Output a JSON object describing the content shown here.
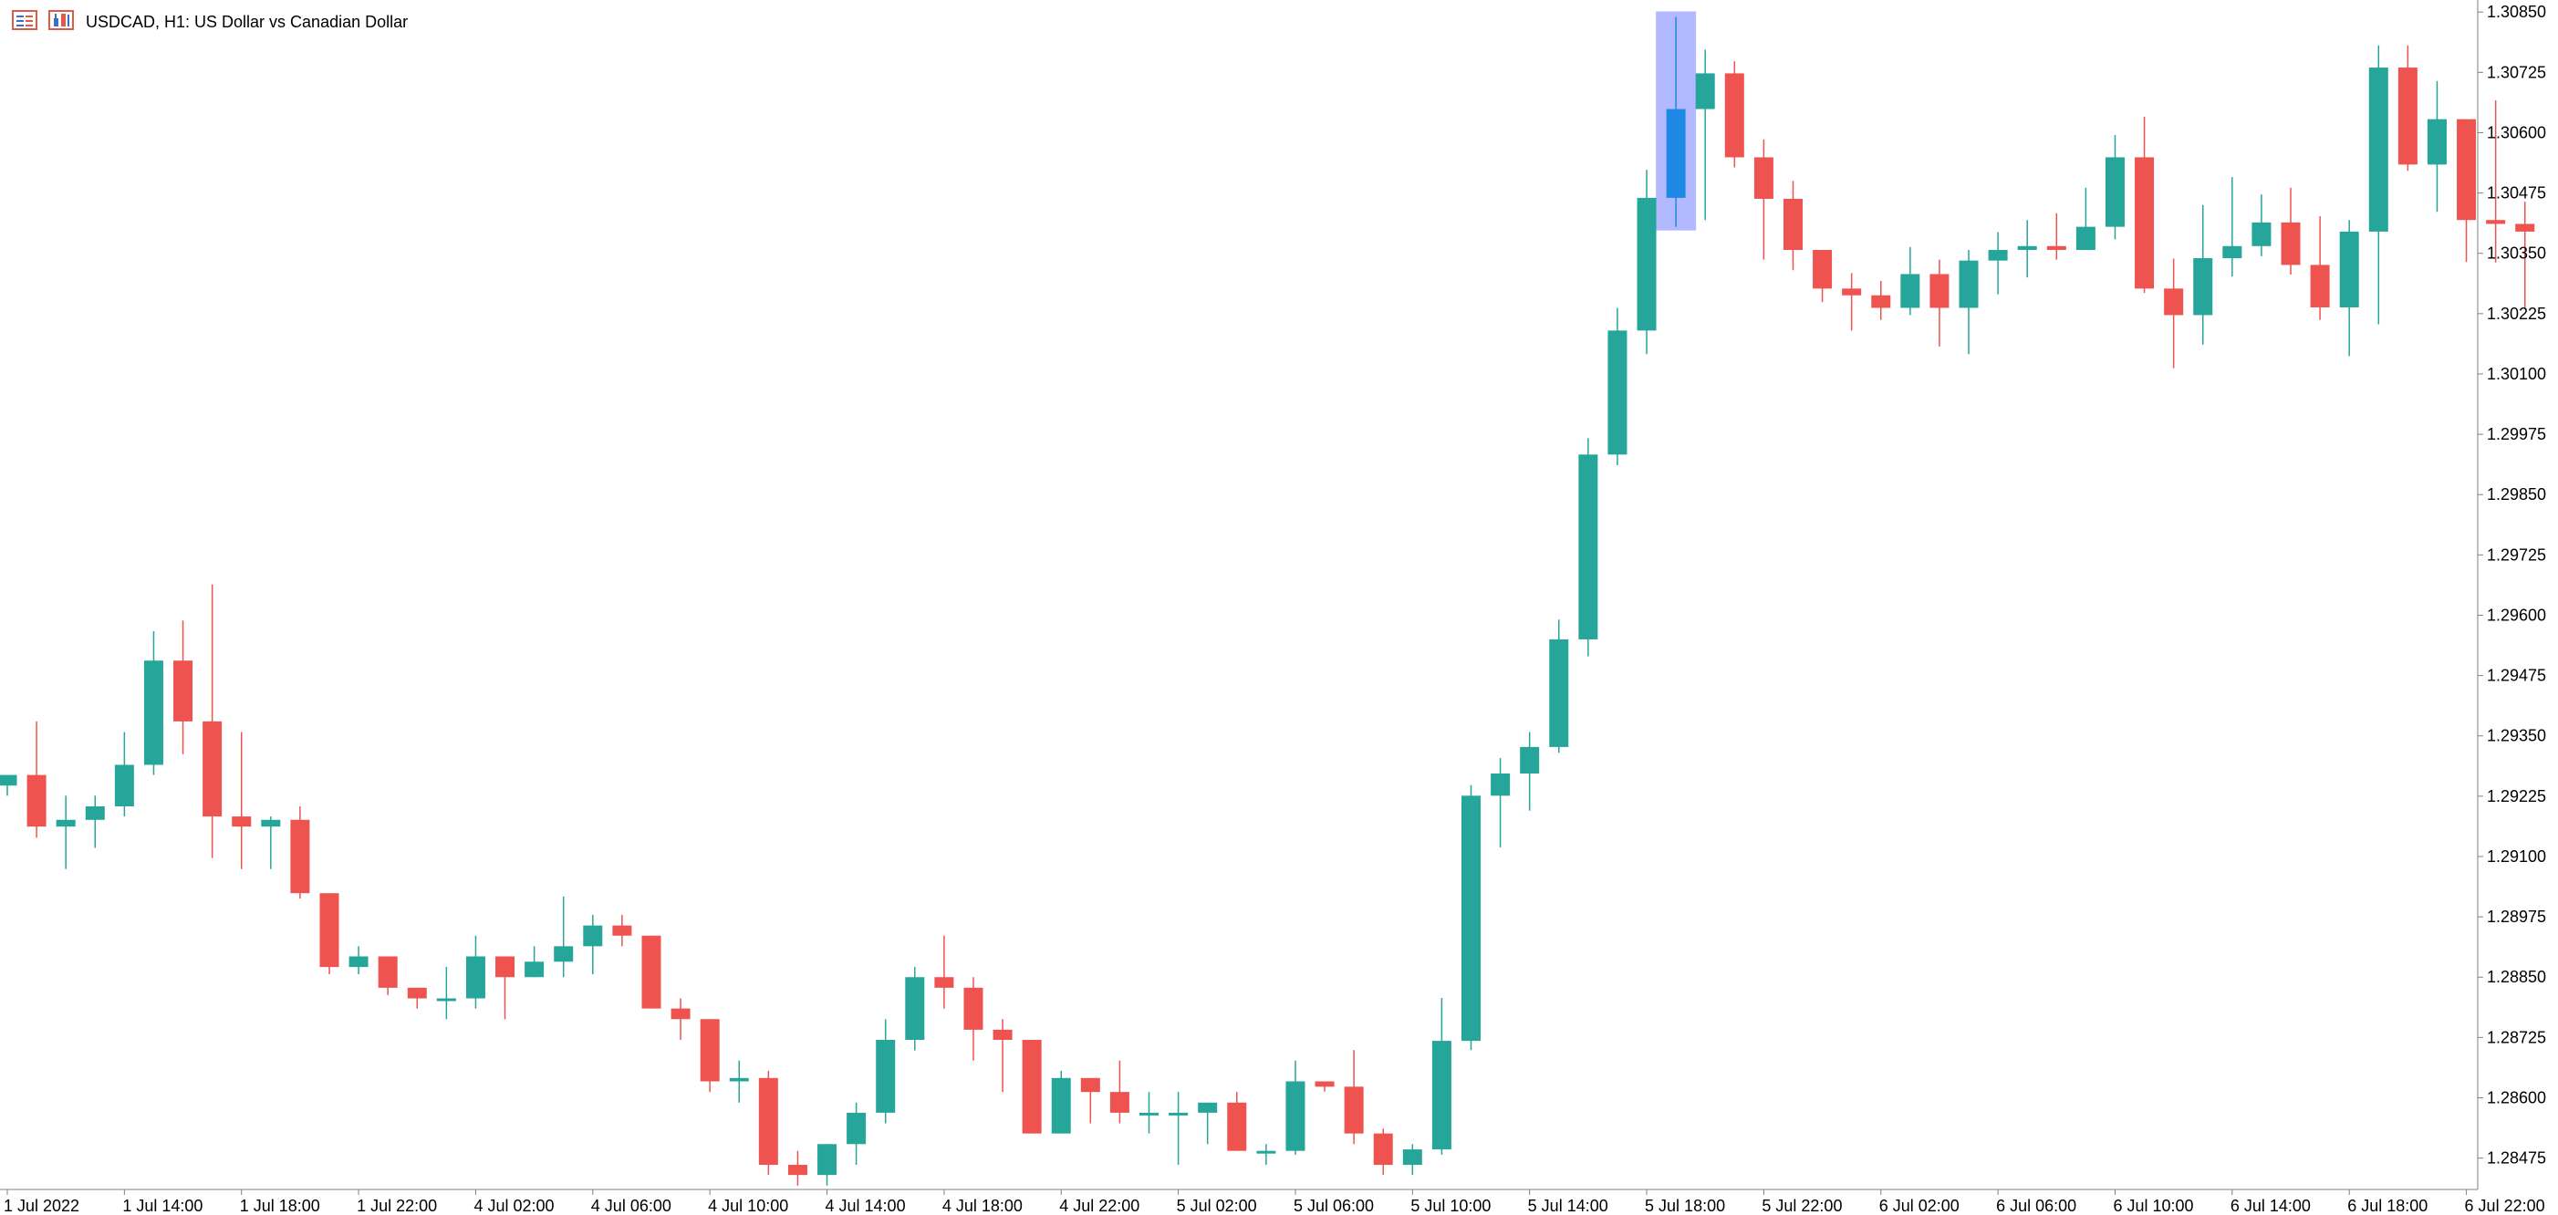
{
  "header": {
    "title": "USDCAD, H1:  US Dollar vs Canadian Dollar",
    "icons": [
      "chart-window-icon",
      "indicator-icon"
    ]
  },
  "colors": {
    "bull": "#26a69a",
    "bear": "#ef5350",
    "current": "#1e88e5",
    "highlight": "#b3b9ff",
    "axis": "#808080",
    "background": "#ffffff"
  },
  "chart_data": {
    "type": "candlestick",
    "symbol": "USDCAD",
    "timeframe": "H1",
    "ylim": [
      1.2841,
      1.30875
    ],
    "y_ticks": [
      "1.30850",
      "1.30725",
      "1.30600",
      "1.30475",
      "1.30350",
      "1.30225",
      "1.30100",
      "1.29975",
      "1.29850",
      "1.29725",
      "1.29600",
      "1.29475",
      "1.29350",
      "1.29225",
      "1.29100",
      "1.28975",
      "1.28850",
      "1.28725",
      "1.28600",
      "1.28475"
    ],
    "x_ticks": [
      {
        "label": "1 Jul 2022",
        "index": 0
      },
      {
        "label": "1 Jul 14:00",
        "index": 4
      },
      {
        "label": "1 Jul 18:00",
        "index": 8
      },
      {
        "label": "1 Jul 22:00",
        "index": 12
      },
      {
        "label": "4 Jul 02:00",
        "index": 16
      },
      {
        "label": "4 Jul 06:00",
        "index": 20
      },
      {
        "label": "4 Jul 10:00",
        "index": 24
      },
      {
        "label": "4 Jul 14:00",
        "index": 28
      },
      {
        "label": "4 Jul 18:00",
        "index": 32
      },
      {
        "label": "4 Jul 22:00",
        "index": 36
      },
      {
        "label": "5 Jul 02:00",
        "index": 40
      },
      {
        "label": "5 Jul 06:00",
        "index": 44
      },
      {
        "label": "5 Jul 10:00",
        "index": 48
      },
      {
        "label": "5 Jul 14:00",
        "index": 52
      },
      {
        "label": "5 Jul 18:00",
        "index": 56
      },
      {
        "label": "5 Jul 22:00",
        "index": 60
      },
      {
        "label": "6 Jul 02:00",
        "index": 64
      },
      {
        "label": "6 Jul 06:00",
        "index": 68
      },
      {
        "label": "6 Jul 10:00",
        "index": 72
      },
      {
        "label": "6 Jul 14:00",
        "index": 76
      },
      {
        "label": "6 Jul 18:00",
        "index": 80
      },
      {
        "label": "6 Jul 22:00",
        "index": 84
      }
    ],
    "highlighted_index": 57,
    "candles": [
      [
        1.29247,
        1.29269,
        1.29226,
        1.29269
      ],
      [
        1.29269,
        1.2938,
        1.29139,
        1.29162
      ],
      [
        1.29162,
        1.29226,
        1.29074,
        1.29176
      ],
      [
        1.29176,
        1.29226,
        1.29118,
        1.29204
      ],
      [
        1.29204,
        1.29358,
        1.29183,
        1.2929
      ],
      [
        1.2929,
        1.29567,
        1.29269,
        1.29506
      ],
      [
        1.29506,
        1.29589,
        1.29312,
        1.2938
      ],
      [
        1.2938,
        1.29664,
        1.29097,
        1.29183
      ],
      [
        1.29183,
        1.29358,
        1.29074,
        1.29162
      ],
      [
        1.29162,
        1.29183,
        1.29074,
        1.29176
      ],
      [
        1.29176,
        1.29204,
        1.29013,
        1.29024
      ],
      [
        1.29024,
        1.29024,
        1.28856,
        1.28871
      ],
      [
        1.28871,
        1.28914,
        1.28856,
        1.28893
      ],
      [
        1.28893,
        1.28893,
        1.28813,
        1.28828
      ],
      [
        1.28828,
        1.28828,
        1.28785,
        1.28806
      ],
      [
        1.28806,
        1.28871,
        1.28763,
        1.28806
      ],
      [
        1.28806,
        1.28936,
        1.28785,
        1.28893
      ],
      [
        1.28893,
        1.28893,
        1.28763,
        1.2885
      ],
      [
        1.2885,
        1.28914,
        1.2885,
        1.28882
      ],
      [
        1.28882,
        1.29017,
        1.2885,
        1.28914
      ],
      [
        1.28914,
        1.28979,
        1.28856,
        1.28957
      ],
      [
        1.28957,
        1.28979,
        1.28914,
        1.28936
      ],
      [
        1.28936,
        1.28936,
        1.28785,
        1.28785
      ],
      [
        1.28785,
        1.28806,
        1.2872,
        1.28763
      ],
      [
        1.28763,
        1.28763,
        1.28612,
        1.28634
      ],
      [
        1.28634,
        1.28677,
        1.2859,
        1.28641
      ],
      [
        1.28641,
        1.28656,
        1.2844,
        1.28461
      ],
      [
        1.28461,
        1.2849,
        1.28418,
        1.2844
      ],
      [
        1.2844,
        1.28504,
        1.28418,
        1.28504
      ],
      [
        1.28504,
        1.2859,
        1.28461,
        1.28569
      ],
      [
        1.28569,
        1.28763,
        1.28547,
        1.2872
      ],
      [
        1.2872,
        1.28871,
        1.28698,
        1.2885
      ],
      [
        1.2885,
        1.28936,
        1.28785,
        1.28828
      ],
      [
        1.28828,
        1.2885,
        1.28677,
        1.28741
      ],
      [
        1.28741,
        1.28763,
        1.28612,
        1.2872
      ],
      [
        1.2872,
        1.2872,
        1.28526,
        1.28526
      ],
      [
        1.28526,
        1.28656,
        1.28526,
        1.28641
      ],
      [
        1.28641,
        1.28641,
        1.28547,
        1.28612
      ],
      [
        1.28612,
        1.28677,
        1.28547,
        1.28569
      ],
      [
        1.28569,
        1.28612,
        1.28526,
        1.28569
      ],
      [
        1.28569,
        1.28612,
        1.28461,
        1.28569
      ],
      [
        1.28569,
        1.28584,
        1.28504,
        1.2859
      ],
      [
        1.2859,
        1.28612,
        1.2849,
        1.2849
      ],
      [
        1.2849,
        1.28504,
        1.28461,
        1.2849
      ],
      [
        1.2849,
        1.28677,
        1.28482,
        1.28634
      ],
      [
        1.28634,
        1.28634,
        1.28613,
        1.28623
      ],
      [
        1.28623,
        1.28699,
        1.28504,
        1.28526
      ],
      [
        1.28526,
        1.28536,
        1.2844,
        1.28461
      ],
      [
        1.28461,
        1.28504,
        1.2844,
        1.28493
      ],
      [
        1.28493,
        1.28807,
        1.28482,
        1.28718
      ],
      [
        1.28718,
        1.29248,
        1.28699,
        1.29226
      ],
      [
        1.29226,
        1.29304,
        1.29119,
        1.29272
      ],
      [
        1.29272,
        1.29358,
        1.29195,
        1.29327
      ],
      [
        1.29327,
        1.29591,
        1.29315,
        1.2955
      ],
      [
        1.2955,
        1.29967,
        1.29515,
        1.29933
      ],
      [
        1.29933,
        1.30237,
        1.29911,
        1.3019
      ],
      [
        1.3019,
        1.30523,
        1.30141,
        1.30465
      ],
      [
        1.30465,
        1.3084,
        1.30405,
        1.30649
      ],
      [
        1.30649,
        1.30772,
        1.30419,
        1.30723
      ],
      [
        1.30723,
        1.30748,
        1.30528,
        1.30549
      ],
      [
        1.30549,
        1.30586,
        1.30337,
        1.30463
      ],
      [
        1.30463,
        1.305,
        1.30315,
        1.30357
      ],
      [
        1.30357,
        1.30357,
        1.30249,
        1.30277
      ],
      [
        1.30277,
        1.30309,
        1.3019,
        1.30263
      ],
      [
        1.30263,
        1.30293,
        1.30212,
        1.30237
      ],
      [
        1.30237,
        1.30363,
        1.30222,
        1.30307
      ],
      [
        1.30307,
        1.30337,
        1.30157,
        1.30237
      ],
      [
        1.30237,
        1.30357,
        1.30141,
        1.30335
      ],
      [
        1.30335,
        1.30394,
        1.30265,
        1.30357
      ],
      [
        1.30357,
        1.30419,
        1.303,
        1.30365
      ],
      [
        1.30365,
        1.30433,
        1.30337,
        1.30357
      ],
      [
        1.30357,
        1.30486,
        1.3036,
        1.30405
      ],
      [
        1.30405,
        1.30595,
        1.30379,
        1.30549
      ],
      [
        1.30549,
        1.30633,
        1.30268,
        1.30277
      ],
      [
        1.30277,
        1.30339,
        1.30112,
        1.30222
      ],
      [
        1.30222,
        1.3045,
        1.30161,
        1.3034
      ],
      [
        1.3034,
        1.30508,
        1.30302,
        1.30365
      ],
      [
        1.30365,
        1.30472,
        1.30344,
        1.30414
      ],
      [
        1.30414,
        1.30486,
        1.30306,
        1.30326
      ],
      [
        1.30326,
        1.30427,
        1.30212,
        1.30238
      ],
      [
        1.30238,
        1.30419,
        1.30137,
        1.30395
      ],
      [
        1.30395,
        1.30781,
        1.30203,
        1.30735
      ],
      [
        1.30735,
        1.30781,
        1.30521,
        1.30534
      ],
      [
        1.30534,
        1.30707,
        1.30436,
        1.30628
      ],
      [
        1.30628,
        1.30628,
        1.30332,
        1.30419
      ],
      [
        1.30419,
        1.30667,
        1.30331,
        1.30411
      ],
      [
        1.30411,
        1.30457,
        1.30234,
        1.30395
      ]
    ]
  }
}
